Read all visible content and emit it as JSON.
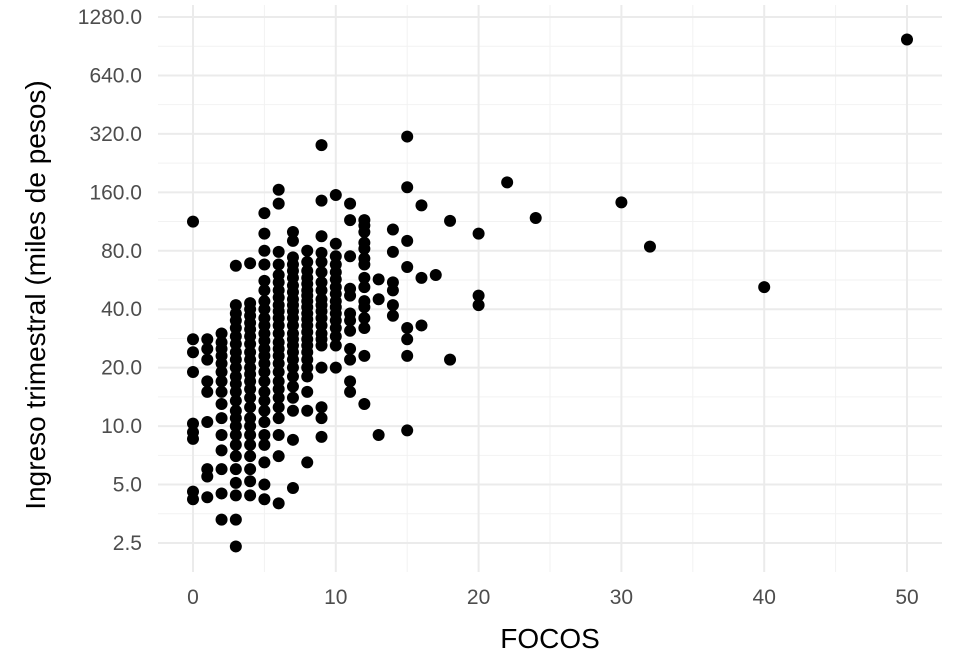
{
  "chart_data": {
    "type": "scatter",
    "title": "",
    "xlabel": "FOCOS",
    "ylabel": "Ingreso trimestral (miles de pesos)",
    "x_scale": "linear",
    "y_scale": "log2",
    "xlim": [
      -2.5,
      52.5
    ],
    "ylim": [
      2.1,
      1550
    ],
    "x_ticks": [
      0,
      10,
      20,
      30,
      40,
      50
    ],
    "x_tick_labels": [
      "0",
      "10",
      "20",
      "30",
      "40",
      "50"
    ],
    "y_ticks": [
      2.5,
      5,
      10,
      20,
      40,
      80,
      160,
      320,
      640,
      1280
    ],
    "y_tick_labels": [
      "2.5",
      "5.0",
      "10.0",
      "20.0",
      "40.0",
      "80.0",
      "160.0",
      "320.0",
      "640.0",
      "1280.0"
    ],
    "grid": true,
    "legend": "none",
    "point_color": "#000000",
    "series": [
      {
        "points": [
          [
            0,
            4.2
          ],
          [
            0,
            4.6
          ],
          [
            0,
            8.6
          ],
          [
            0,
            9.3
          ],
          [
            0,
            10.3
          ],
          [
            0,
            19
          ],
          [
            0,
            24
          ],
          [
            0,
            28
          ],
          [
            0,
            113
          ],
          [
            1,
            4.3
          ],
          [
            1,
            5.5
          ],
          [
            1,
            6
          ],
          [
            1,
            10.5
          ],
          [
            1,
            15
          ],
          [
            1,
            17
          ],
          [
            1,
            22
          ],
          [
            1,
            25
          ],
          [
            1,
            28
          ],
          [
            2,
            3.3
          ],
          [
            2,
            4.5
          ],
          [
            2,
            6
          ],
          [
            2,
            7.5
          ],
          [
            2,
            9
          ],
          [
            2,
            11
          ],
          [
            2,
            13
          ],
          [
            2,
            15
          ],
          [
            2,
            17
          ],
          [
            2,
            19
          ],
          [
            2,
            21
          ],
          [
            2,
            23
          ],
          [
            2,
            25
          ],
          [
            2,
            27
          ],
          [
            2,
            30
          ],
          [
            3,
            2.4
          ],
          [
            3,
            3.3
          ],
          [
            3,
            4.4
          ],
          [
            3,
            5.1
          ],
          [
            3,
            6
          ],
          [
            3,
            7
          ],
          [
            3,
            8
          ],
          [
            3,
            9
          ],
          [
            3,
            10
          ],
          [
            3,
            11
          ],
          [
            3,
            12
          ],
          [
            3,
            13.5
          ],
          [
            3,
            15
          ],
          [
            3,
            16.5
          ],
          [
            3,
            18
          ],
          [
            3,
            20
          ],
          [
            3,
            22
          ],
          [
            3,
            24
          ],
          [
            3,
            26.5
          ],
          [
            3,
            29
          ],
          [
            3,
            32
          ],
          [
            3,
            35
          ],
          [
            3,
            38
          ],
          [
            3,
            42
          ],
          [
            3,
            67
          ],
          [
            4,
            4.4
          ],
          [
            4,
            5.2
          ],
          [
            4,
            6
          ],
          [
            4,
            7
          ],
          [
            4,
            8
          ],
          [
            4,
            9
          ],
          [
            4,
            10
          ],
          [
            4,
            11
          ],
          [
            4,
            12.5
          ],
          [
            4,
            14
          ],
          [
            4,
            15.5
          ],
          [
            4,
            17
          ],
          [
            4,
            18.5
          ],
          [
            4,
            20
          ],
          [
            4,
            22
          ],
          [
            4,
            24
          ],
          [
            4,
            26.5
          ],
          [
            4,
            29
          ],
          [
            4,
            31.5
          ],
          [
            4,
            34
          ],
          [
            4,
            37
          ],
          [
            4,
            40
          ],
          [
            4,
            43
          ],
          [
            4,
            69
          ],
          [
            5,
            4.2
          ],
          [
            5,
            5
          ],
          [
            5,
            6.5
          ],
          [
            5,
            8
          ],
          [
            5,
            9
          ],
          [
            5,
            10.5
          ],
          [
            5,
            12
          ],
          [
            5,
            13.5
          ],
          [
            5,
            15
          ],
          [
            5,
            17
          ],
          [
            5,
            19
          ],
          [
            5,
            21
          ],
          [
            5,
            23
          ],
          [
            5,
            25
          ],
          [
            5,
            27.5
          ],
          [
            5,
            30
          ],
          [
            5,
            33
          ],
          [
            5,
            36
          ],
          [
            5,
            40
          ],
          [
            5,
            44
          ],
          [
            5,
            50
          ],
          [
            5,
            56
          ],
          [
            5,
            68
          ],
          [
            5,
            80
          ],
          [
            5,
            98
          ],
          [
            5,
            125
          ],
          [
            6,
            4
          ],
          [
            6,
            7
          ],
          [
            6,
            9
          ],
          [
            6,
            11
          ],
          [
            6,
            12.5
          ],
          [
            6,
            14
          ],
          [
            6,
            15.5
          ],
          [
            6,
            17
          ],
          [
            6,
            19
          ],
          [
            6,
            21
          ],
          [
            6,
            23
          ],
          [
            6,
            25
          ],
          [
            6,
            27
          ],
          [
            6,
            30
          ],
          [
            6,
            33
          ],
          [
            6,
            36
          ],
          [
            6,
            39
          ],
          [
            6,
            42
          ],
          [
            6,
            46
          ],
          [
            6,
            50
          ],
          [
            6,
            55
          ],
          [
            6,
            60
          ],
          [
            6,
            68
          ],
          [
            6,
            79
          ],
          [
            6,
            140
          ],
          [
            6,
            165
          ],
          [
            7,
            4.8
          ],
          [
            7,
            8.5
          ],
          [
            7,
            12
          ],
          [
            7,
            14
          ],
          [
            7,
            16
          ],
          [
            7,
            18
          ],
          [
            7,
            20
          ],
          [
            7,
            22
          ],
          [
            7,
            24
          ],
          [
            7,
            26
          ],
          [
            7,
            28
          ],
          [
            7,
            30
          ],
          [
            7,
            33
          ],
          [
            7,
            36
          ],
          [
            7,
            39
          ],
          [
            7,
            42
          ],
          [
            7,
            45
          ],
          [
            7,
            49
          ],
          [
            7,
            53
          ],
          [
            7,
            58
          ],
          [
            7,
            63
          ],
          [
            7,
            68
          ],
          [
            7,
            74
          ],
          [
            7,
            90
          ],
          [
            7,
            100
          ],
          [
            8,
            6.5
          ],
          [
            8,
            12
          ],
          [
            8,
            15
          ],
          [
            8,
            18
          ],
          [
            8,
            20
          ],
          [
            8,
            22
          ],
          [
            8,
            24
          ],
          [
            8,
            26
          ],
          [
            8,
            28
          ],
          [
            8,
            30.5
          ],
          [
            8,
            33
          ],
          [
            8,
            35.5
          ],
          [
            8,
            38
          ],
          [
            8,
            41
          ],
          [
            8,
            44
          ],
          [
            8,
            47
          ],
          [
            8,
            50
          ],
          [
            8,
            54
          ],
          [
            8,
            58
          ],
          [
            8,
            63
          ],
          [
            8,
            70
          ],
          [
            8,
            80
          ],
          [
            9,
            8.8
          ],
          [
            9,
            11
          ],
          [
            9,
            12.5
          ],
          [
            9,
            20
          ],
          [
            9,
            26
          ],
          [
            9,
            28
          ],
          [
            9,
            30
          ],
          [
            9,
            33
          ],
          [
            9,
            36
          ],
          [
            9,
            39
          ],
          [
            9,
            42
          ],
          [
            9,
            45
          ],
          [
            9,
            50
          ],
          [
            9,
            55
          ],
          [
            9,
            62
          ],
          [
            9,
            70
          ],
          [
            9,
            78
          ],
          [
            9,
            95
          ],
          [
            9,
            145
          ],
          [
            9,
            280
          ],
          [
            10,
            20
          ],
          [
            10,
            26
          ],
          [
            10,
            29
          ],
          [
            10,
            32
          ],
          [
            10,
            35
          ],
          [
            10,
            38
          ],
          [
            10,
            41
          ],
          [
            10,
            44
          ],
          [
            10,
            48
          ],
          [
            10,
            52
          ],
          [
            10,
            57
          ],
          [
            10,
            62
          ],
          [
            10,
            68
          ],
          [
            10,
            75
          ],
          [
            10,
            87
          ],
          [
            10,
            155
          ],
          [
            11,
            15
          ],
          [
            11,
            17
          ],
          [
            11,
            22
          ],
          [
            11,
            25
          ],
          [
            11,
            31
          ],
          [
            11,
            35
          ],
          [
            11,
            38
          ],
          [
            11,
            47
          ],
          [
            11,
            51
          ],
          [
            11,
            75
          ],
          [
            11,
            115
          ],
          [
            11,
            140
          ],
          [
            12,
            13
          ],
          [
            12,
            23
          ],
          [
            12,
            32
          ],
          [
            12,
            36
          ],
          [
            12,
            41
          ],
          [
            12,
            44
          ],
          [
            12,
            52
          ],
          [
            12,
            58
          ],
          [
            12,
            68
          ],
          [
            12,
            73
          ],
          [
            12,
            82
          ],
          [
            12,
            88
          ],
          [
            12,
            100
          ],
          [
            12,
            108
          ],
          [
            12,
            115
          ],
          [
            13,
            9
          ],
          [
            13,
            45
          ],
          [
            13,
            57
          ],
          [
            14,
            37
          ],
          [
            14,
            42
          ],
          [
            14,
            50
          ],
          [
            14,
            55
          ],
          [
            14,
            79
          ],
          [
            14,
            103
          ],
          [
            15,
            9.5
          ],
          [
            15,
            23
          ],
          [
            15,
            28
          ],
          [
            15,
            32
          ],
          [
            15,
            66
          ],
          [
            15,
            90
          ],
          [
            15,
            170
          ],
          [
            15,
            310
          ],
          [
            16,
            33
          ],
          [
            16,
            58
          ],
          [
            16,
            137
          ],
          [
            17,
            60
          ],
          [
            18,
            22
          ],
          [
            18,
            114
          ],
          [
            20,
            42
          ],
          [
            20,
            47
          ],
          [
            20,
            98
          ],
          [
            22,
            180
          ],
          [
            24,
            118
          ],
          [
            30,
            142
          ],
          [
            32,
            84
          ],
          [
            40,
            52
          ],
          [
            50,
            980
          ]
        ]
      }
    ]
  }
}
